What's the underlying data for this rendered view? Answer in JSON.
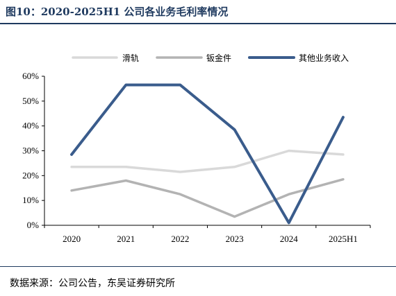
{
  "figure": {
    "title": "图10：2020-2025H1 公司各业务毛利率情况",
    "source": "数据来源：公司公告，东吴证券研究所"
  },
  "chart_data": {
    "type": "line",
    "categories": [
      "2020",
      "2021",
      "2022",
      "2023",
      "2024",
      "2025H1"
    ],
    "ylim": [
      0,
      60
    ],
    "yticks": [
      "0%",
      "10%",
      "20%",
      "30%",
      "40%",
      "50%",
      "60%"
    ],
    "grid": false,
    "legend": "top",
    "series": [
      {
        "name": "滑轨",
        "color": "#d9d9d9",
        "values": [
          23.5,
          23.5,
          21.5,
          23.5,
          30,
          28.5
        ]
      },
      {
        "name": "钣金件",
        "color": "#b3b3b3",
        "values": [
          14,
          18,
          12.5,
          3.5,
          12.5,
          18.5
        ]
      },
      {
        "name": "其他业务收入",
        "color": "#3a5c8c",
        "values": [
          28.5,
          56.5,
          56.5,
          38.5,
          1,
          43.5
        ]
      }
    ]
  }
}
